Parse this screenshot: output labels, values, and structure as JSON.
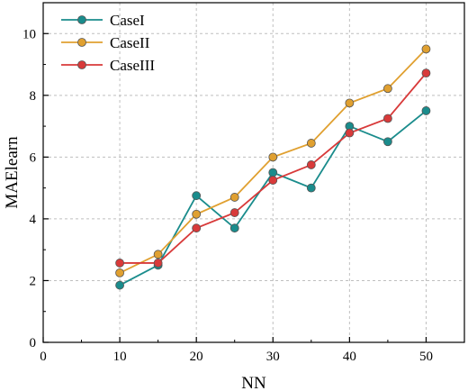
{
  "chart_data": {
    "type": "line",
    "title": "",
    "xlabel": "NN",
    "ylabel": "MAElearn",
    "xlim": [
      0,
      55
    ],
    "ylim": [
      0,
      11
    ],
    "xticks": [
      0,
      10,
      20,
      30,
      40,
      50
    ],
    "yticks": [
      0,
      2,
      4,
      6,
      8,
      10
    ],
    "grid": true,
    "legend_position": "top-left",
    "x": [
      10,
      15,
      20,
      25,
      30,
      35,
      40,
      45,
      50
    ],
    "series": [
      {
        "name": "CaseI",
        "color": "#1a8c8c",
        "values": [
          1.85,
          2.5,
          4.75,
          3.7,
          5.5,
          5.0,
          7.0,
          6.5,
          7.5
        ]
      },
      {
        "name": "CaseII",
        "color": "#e0a030",
        "values": [
          2.25,
          2.85,
          4.15,
          4.7,
          6.0,
          6.45,
          7.75,
          8.22,
          9.5
        ]
      },
      {
        "name": "CaseIII",
        "color": "#d83a3a",
        "values": [
          2.57,
          2.57,
          3.7,
          4.2,
          5.25,
          5.75,
          6.78,
          7.25,
          8.72
        ]
      }
    ]
  }
}
